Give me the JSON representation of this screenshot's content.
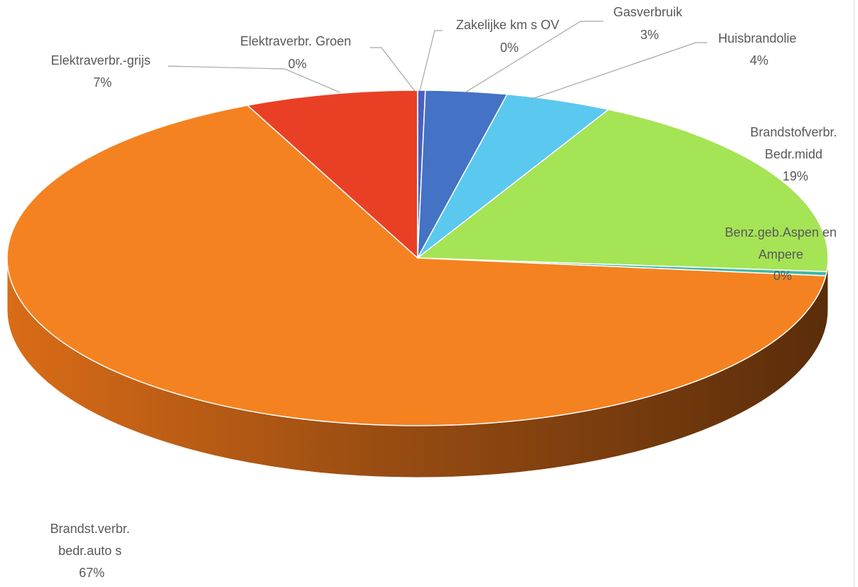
{
  "chart_data": {
    "type": "pie",
    "style": "3d",
    "title": "",
    "data_labels": "category-and-percent",
    "slices": [
      {
        "name": "Zakelijke km s  OV",
        "value": 0.3,
        "label": "0%",
        "color": "#4a5fc1"
      },
      {
        "name": "Gasverbruik",
        "value": 3.2,
        "label": "3%",
        "color": "#4472c4"
      },
      {
        "name": "Huisbrandolie",
        "value": 4.2,
        "label": "4%",
        "color": "#5bc8ef"
      },
      {
        "name": "Brandstofverbr. Bedr.midd",
        "value": 18.6,
        "label": "19%",
        "color": "#a5e455"
      },
      {
        "name": "Benz.geb.Aspen en Ampere",
        "value": 0.4,
        "label": "0%",
        "color": "#3fb8a8"
      },
      {
        "name": "Brandst.verbr. bedr.auto s",
        "value": 66.5,
        "label": "67%",
        "color": "#f58220"
      },
      {
        "name": "Elektraverbr.-grijs",
        "value": 6.8,
        "label": "7%",
        "color": "#e94025"
      },
      {
        "name": "Elektraverbr. Groen",
        "value": 0.0,
        "label": "0%",
        "color": "#70ad47"
      }
    ]
  }
}
